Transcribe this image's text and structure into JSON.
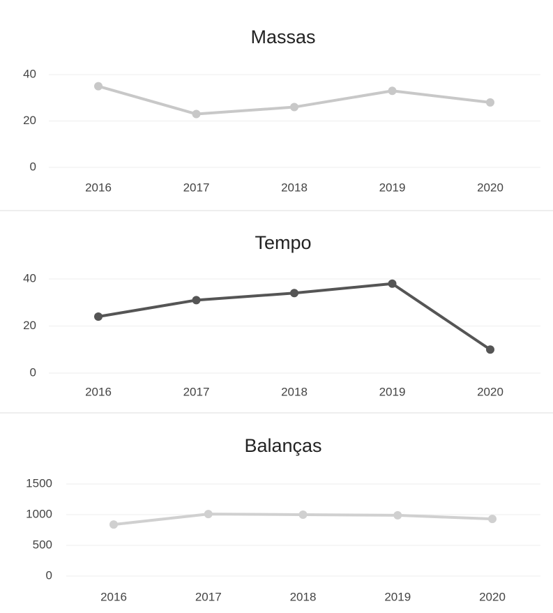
{
  "chart_data": [
    {
      "type": "line",
      "title": "Massas",
      "categories": [
        "2016",
        "2017",
        "2018",
        "2019",
        "2020"
      ],
      "series": [
        {
          "name": "Massas",
          "color": "#c8c8c8",
          "values": [
            35,
            23,
            26,
            33,
            28
          ]
        }
      ],
      "ylim": [
        0,
        40
      ],
      "yticks": [
        0,
        20,
        40
      ],
      "grid": true
    },
    {
      "type": "line",
      "title": "Tempo",
      "categories": [
        "2016",
        "2017",
        "2018",
        "2019",
        "2020"
      ],
      "series": [
        {
          "name": "Tempo",
          "color": "#555555",
          "values": [
            24,
            31,
            34,
            38,
            10
          ]
        }
      ],
      "ylim": [
        0,
        40
      ],
      "yticks": [
        0,
        20,
        40
      ],
      "grid": true
    },
    {
      "type": "line",
      "title": "Balanças",
      "categories": [
        "2016",
        "2017",
        "2018",
        "2019",
        "2020"
      ],
      "series": [
        {
          "name": "Balanças",
          "color": "#d0d0d0",
          "values": [
            840,
            1010,
            1000,
            990,
            930
          ]
        }
      ],
      "ylim": [
        0,
        1500
      ],
      "yticks": [
        0,
        500,
        1000,
        1500
      ],
      "grid": true
    }
  ]
}
